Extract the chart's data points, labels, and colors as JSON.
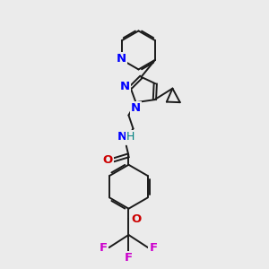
{
  "bg_color": "#ebebeb",
  "bond_color": "#1a1a1a",
  "N_color": "#0000ff",
  "O_color": "#cc0000",
  "F_color": "#cc00cc",
  "H_color": "#008080",
  "linewidth": 1.4,
  "figsize": [
    3.0,
    3.0
  ],
  "dpi": 100,
  "xlim": [
    0,
    10
  ],
  "ylim": [
    0,
    10
  ]
}
